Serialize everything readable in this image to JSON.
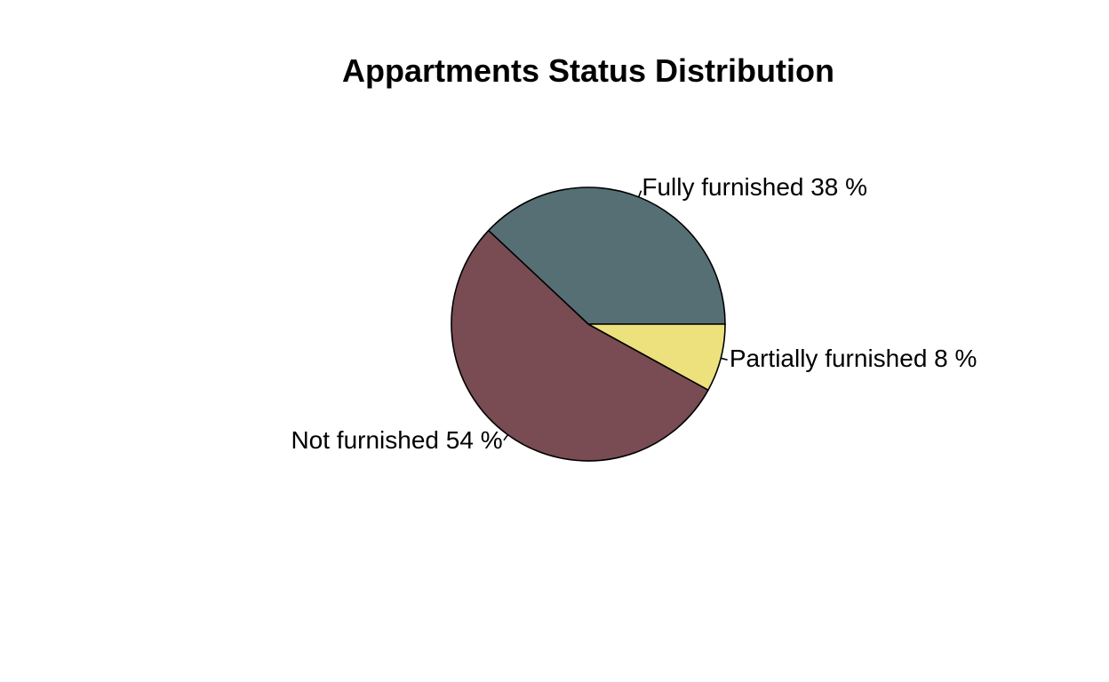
{
  "chart_data": {
    "type": "pie",
    "title": "Appartments Status Distribution",
    "start_angle_deg": 0,
    "direction": "counterclockwise",
    "slices": [
      {
        "name": "Fully furnished",
        "percent": 38,
        "label": "Fully furnished 38 %",
        "color": "#566f74"
      },
      {
        "name": "Not furnished",
        "percent": 54,
        "label": "Not furnished 54 %",
        "color": "#784c52"
      },
      {
        "name": "Partially furnished",
        "percent": 8,
        "label": "Partially furnished 8 %",
        "color": "#ece17c"
      }
    ]
  }
}
